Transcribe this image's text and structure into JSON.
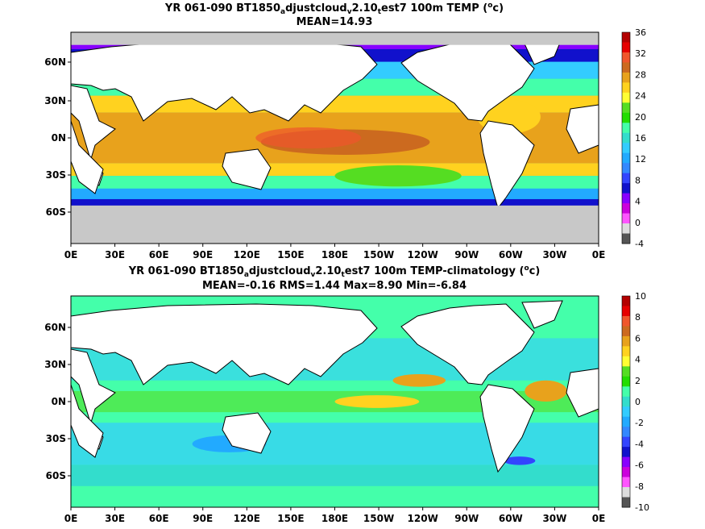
{
  "chart_data": [
    {
      "type": "heatmap",
      "title": {
        "pre": "YR 061-090 BT1850",
        "s1": "a",
        "mid": "djustcloud",
        "s2": "v",
        "mid2": "2.10",
        "s3": "t",
        "post": "est7 100m TEMP (",
        "sup": "o",
        "end": "c)"
      },
      "subtitle": "MEAN=14.93",
      "x_ticks": [
        "0E",
        "30E",
        "60E",
        "90E",
        "120E",
        "150E",
        "180E",
        "150W",
        "120W",
        "90W",
        "60W",
        "30W",
        "0E"
      ],
      "y_ticks": [
        "60N",
        "30N",
        "0N",
        "30S",
        "60S"
      ],
      "colorbar": {
        "labels": [
          "36",
          "32",
          "28",
          "24",
          "20",
          "16",
          "12",
          "8",
          "4",
          "0",
          "-4"
        ],
        "colors": [
          "#b30000",
          "#e60000",
          "#f0562c",
          "#cc6a1f",
          "#e8a21c",
          "#ffd21f",
          "#ffff33",
          "#55dd22",
          "#22dd00",
          "#44ffaa",
          "#33ddcc",
          "#33ccff",
          "#22aaff",
          "#3388ff",
          "#3344ff",
          "#1111cc",
          "#8800ff",
          "#cc00dd",
          "#ff55ff",
          "#dddddd",
          "#555555"
        ]
      }
    },
    {
      "type": "heatmap",
      "title": {
        "pre": "YR 061-090 BT1850",
        "s1": "a",
        "mid": "djustcloud",
        "s2": "v",
        "mid2": "2.10",
        "s3": "t",
        "post": "est7 100m TEMP-climatology (",
        "sup": "o",
        "end": "c)"
      },
      "subtitle": "MEAN=-0.16   RMS=1.44   Max=8.90   Min=-6.84",
      "x_ticks": [
        "0E",
        "30E",
        "60E",
        "90E",
        "120E",
        "150E",
        "180E",
        "150W",
        "120W",
        "90W",
        "60W",
        "30W",
        "0E"
      ],
      "y_ticks": [
        "60N",
        "30N",
        "0N",
        "30S",
        "60S"
      ],
      "colorbar": {
        "labels": [
          "10",
          "8",
          "6",
          "4",
          "2",
          "0",
          "-2",
          "-4",
          "-6",
          "-8",
          "-10"
        ],
        "colors": [
          "#b30000",
          "#e60000",
          "#f0562c",
          "#cc6a1f",
          "#e8a21c",
          "#ffd21f",
          "#ffff33",
          "#55dd22",
          "#22dd00",
          "#44ffaa",
          "#33ddcc",
          "#33ccff",
          "#22aaff",
          "#3388ff",
          "#3344ff",
          "#1111cc",
          "#8800ff",
          "#cc00dd",
          "#ff55ff",
          "#dddddd",
          "#555555"
        ]
      }
    }
  ],
  "palette": {
    "land": "#ffffff",
    "ice": "#c8c8c8",
    "coast": "#000000"
  }
}
